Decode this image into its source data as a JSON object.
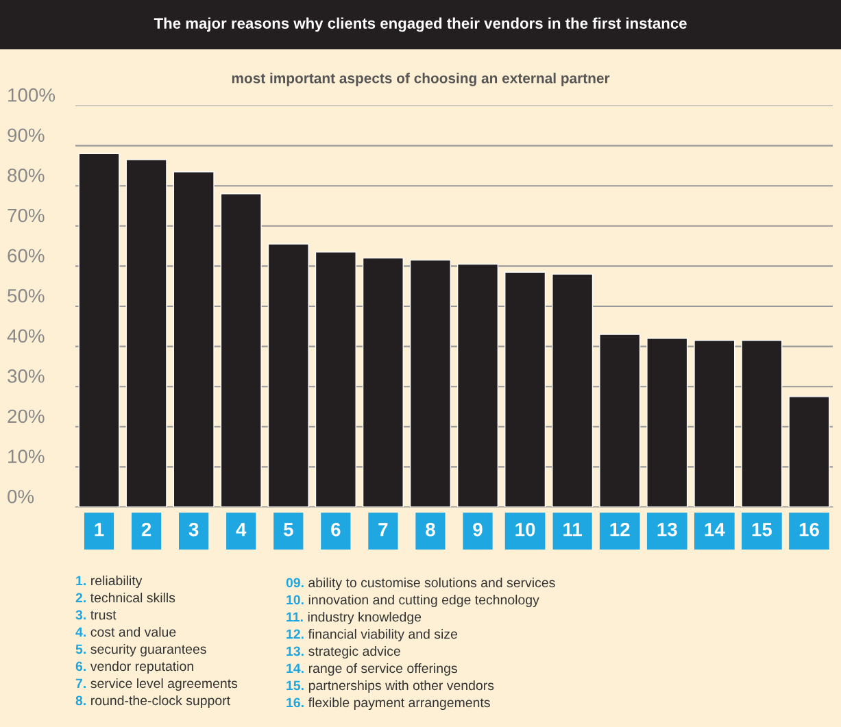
{
  "chart_data": {
    "type": "bar",
    "title": "The major reasons why clients engaged their vendors in the first instance",
    "subtitle": "most important aspects of choosing an external partner",
    "categories": [
      "1",
      "2",
      "3",
      "4",
      "5",
      "6",
      "7",
      "8",
      "9",
      "10",
      "11",
      "12",
      "13",
      "14",
      "15",
      "16"
    ],
    "values": [
      88,
      86.5,
      83.5,
      78,
      65.5,
      63.5,
      62,
      61.5,
      60.5,
      58.5,
      58,
      43,
      42,
      41.5,
      41.5,
      27.5
    ],
    "color": "#231f20",
    "ylim": [
      0,
      100
    ],
    "yticks": [
      {
        "value": 0,
        "label": "0%"
      },
      {
        "value": 10,
        "label": "10%"
      },
      {
        "value": 20,
        "label": "20%"
      },
      {
        "value": 30,
        "label": "30%"
      },
      {
        "value": 40,
        "label": "40%"
      },
      {
        "value": 50,
        "label": "50%"
      },
      {
        "value": 60,
        "label": "60%"
      },
      {
        "value": 70,
        "label": "70%"
      },
      {
        "value": 80,
        "label": "80%"
      },
      {
        "value": 90,
        "label": "90%"
      },
      {
        "value": 100,
        "label": "100%"
      }
    ],
    "grid": "y",
    "annotations": [
      "1. reliability",
      "2. technical skills",
      "3. trust",
      "4. cost and value",
      "5. security guarantees",
      "6. vendor reputation",
      "7. service level agreements",
      "8. round-the-clock support",
      "09. ability to customise solutions and services",
      "10. innovation and cutting edge technology",
      "11. industry knowledge",
      "12. financial viability and size",
      "13. strategic advice",
      "14. range of service offerings",
      "15. partnerships with other vendors",
      "16. flexible payment arrangements"
    ]
  }
}
